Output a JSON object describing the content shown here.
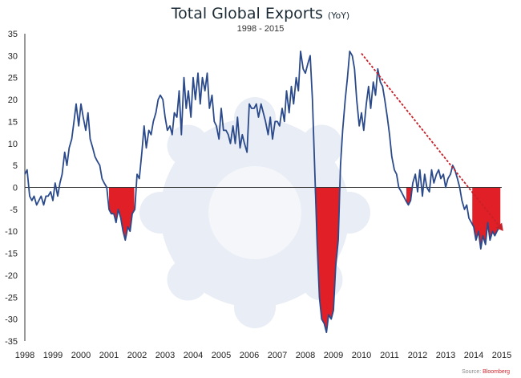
{
  "colors": {
    "line": "#2b4a8b",
    "negative_fill": "#e11f26",
    "trend": "#c8202a",
    "axis_text": "#222222",
    "background_logo": "#e9edf5"
  },
  "source": {
    "label": "Source:",
    "brand": "Bloomberg"
  },
  "chart_data": {
    "type": "line",
    "title": "Total Global Exports",
    "title_suffix": "(YoY)",
    "subtitle": "1998 - 2015",
    "xlabel": "",
    "ylabel": "",
    "xlim": [
      1998,
      2015
    ],
    "ylim": [
      -35,
      35
    ],
    "yticks": [
      35,
      30,
      25,
      20,
      15,
      10,
      5,
      0,
      -5,
      -10,
      -15,
      -20,
      -25,
      -30,
      -35
    ],
    "xticks": [
      1998,
      1999,
      2000,
      2001,
      2002,
      2003,
      2004,
      2005,
      2006,
      2007,
      2008,
      2009,
      2010,
      2011,
      2012,
      2013,
      2014,
      2015
    ],
    "negative_fill_intervals": [
      [
        2001.0,
        2001.9
      ],
      [
        2008.2,
        2009.3
      ],
      [
        2011.6,
        2011.9
      ],
      [
        2013.95,
        2014.95
      ]
    ],
    "series": [
      {
        "name": "Total Global Exports YoY",
        "x": [
          1998.0,
          1998.08,
          1998.17,
          1998.25,
          1998.33,
          1998.42,
          1998.5,
          1998.58,
          1998.67,
          1998.75,
          1998.83,
          1998.92,
          1999.0,
          1999.08,
          1999.17,
          1999.25,
          1999.33,
          1999.42,
          1999.5,
          1999.58,
          1999.67,
          1999.75,
          1999.83,
          1999.92,
          2000.0,
          2000.08,
          2000.17,
          2000.25,
          2000.33,
          2000.42,
          2000.5,
          2000.58,
          2000.67,
          2000.75,
          2000.83,
          2000.92,
          2001.0,
          2001.08,
          2001.17,
          2001.25,
          2001.33,
          2001.42,
          2001.5,
          2001.58,
          2001.67,
          2001.75,
          2001.83,
          2001.92,
          2002.0,
          2002.08,
          2002.17,
          2002.25,
          2002.33,
          2002.42,
          2002.5,
          2002.58,
          2002.67,
          2002.75,
          2002.83,
          2002.92,
          2003.0,
          2003.08,
          2003.17,
          2003.25,
          2003.33,
          2003.42,
          2003.5,
          2003.58,
          2003.67,
          2003.75,
          2003.83,
          2003.92,
          2004.0,
          2004.08,
          2004.17,
          2004.25,
          2004.33,
          2004.42,
          2004.5,
          2004.58,
          2004.67,
          2004.75,
          2004.83,
          2004.92,
          2005.0,
          2005.08,
          2005.17,
          2005.25,
          2005.33,
          2005.42,
          2005.5,
          2005.58,
          2005.67,
          2005.75,
          2005.83,
          2005.92,
          2006.0,
          2006.08,
          2006.17,
          2006.25,
          2006.33,
          2006.42,
          2006.5,
          2006.58,
          2006.67,
          2006.75,
          2006.83,
          2006.92,
          2007.0,
          2007.08,
          2007.17,
          2007.25,
          2007.33,
          2007.42,
          2007.5,
          2007.58,
          2007.67,
          2007.75,
          2007.83,
          2007.92,
          2008.0,
          2008.08,
          2008.17,
          2008.25,
          2008.33,
          2008.42,
          2008.5,
          2008.58,
          2008.67,
          2008.75,
          2008.83,
          2008.92,
          2009.0,
          2009.08,
          2009.17,
          2009.25,
          2009.33,
          2009.42,
          2009.5,
          2009.58,
          2009.67,
          2009.75,
          2009.83,
          2009.92,
          2010.0,
          2010.08,
          2010.17,
          2010.25,
          2010.33,
          2010.42,
          2010.5,
          2010.58,
          2010.67,
          2010.75,
          2010.83,
          2010.92,
          2011.0,
          2011.08,
          2011.17,
          2011.25,
          2011.33,
          2011.42,
          2011.5,
          2011.58,
          2011.67,
          2011.75,
          2011.83,
          2011.92,
          2012.0,
          2012.08,
          2012.17,
          2012.25,
          2012.33,
          2012.42,
          2012.5,
          2012.58,
          2012.67,
          2012.75,
          2012.83,
          2012.92,
          2013.0,
          2013.08,
          2013.17,
          2013.25,
          2013.33,
          2013.42,
          2013.5,
          2013.58,
          2013.67,
          2013.75,
          2013.83,
          2013.92,
          2014.0,
          2014.08,
          2014.17,
          2014.25,
          2014.33,
          2014.42,
          2014.5,
          2014.58,
          2014.67,
          2014.75,
          2014.83,
          2014.92
        ],
        "values": [
          3,
          4,
          -2,
          -3,
          -2,
          -4,
          -3,
          -2,
          -4,
          -2,
          -2,
          -1,
          -3,
          1,
          -2,
          1,
          3,
          8,
          5,
          9,
          11,
          15,
          19,
          14,
          19,
          16,
          13,
          17,
          11,
          9,
          7,
          6,
          5,
          2,
          1,
          0,
          -5,
          -6,
          -6,
          -8,
          -5,
          -7,
          -10,
          -12,
          -9,
          -10,
          -6,
          -5,
          3,
          2,
          8,
          14,
          9,
          13,
          12,
          15,
          17,
          20,
          21,
          20,
          16,
          13,
          14,
          12,
          17,
          16,
          22,
          12,
          25,
          18,
          22,
          16,
          25,
          20,
          26,
          19,
          25,
          22,
          26,
          18,
          21,
          15,
          14,
          11,
          18,
          13,
          13,
          12,
          10,
          14,
          10,
          16,
          9,
          12,
          10,
          8,
          19,
          18,
          18,
          19,
          16,
          19,
          17,
          15,
          12,
          16,
          11,
          15,
          15,
          14,
          18,
          15,
          22,
          17,
          23,
          19,
          25,
          22,
          31,
          27,
          26,
          28,
          30,
          20,
          5,
          -13,
          -25,
          -30,
          -31,
          -33,
          -29,
          -30,
          -28,
          -18,
          -12,
          5,
          13,
          20,
          25,
          31,
          30,
          27,
          20,
          14,
          17,
          13,
          19,
          23,
          18,
          24,
          21,
          27,
          24,
          23,
          20,
          16,
          12,
          7,
          4,
          3,
          0,
          -1,
          -2,
          -3,
          -4,
          -3,
          1,
          3,
          -1,
          4,
          -2,
          3,
          0,
          -1,
          4,
          1,
          3,
          4,
          2,
          3,
          0,
          2,
          3,
          5,
          4,
          2,
          0,
          -3,
          -5,
          -4,
          -7,
          -8,
          -9,
          -12,
          -10,
          -14,
          -11,
          -13,
          -8,
          -12,
          -10,
          -11,
          -10,
          -9
        ]
      }
    ],
    "trend_line": {
      "label": "",
      "x": [
        2010.0,
        2015.0
      ],
      "values": [
        30.5,
        -9.5
      ]
    }
  }
}
